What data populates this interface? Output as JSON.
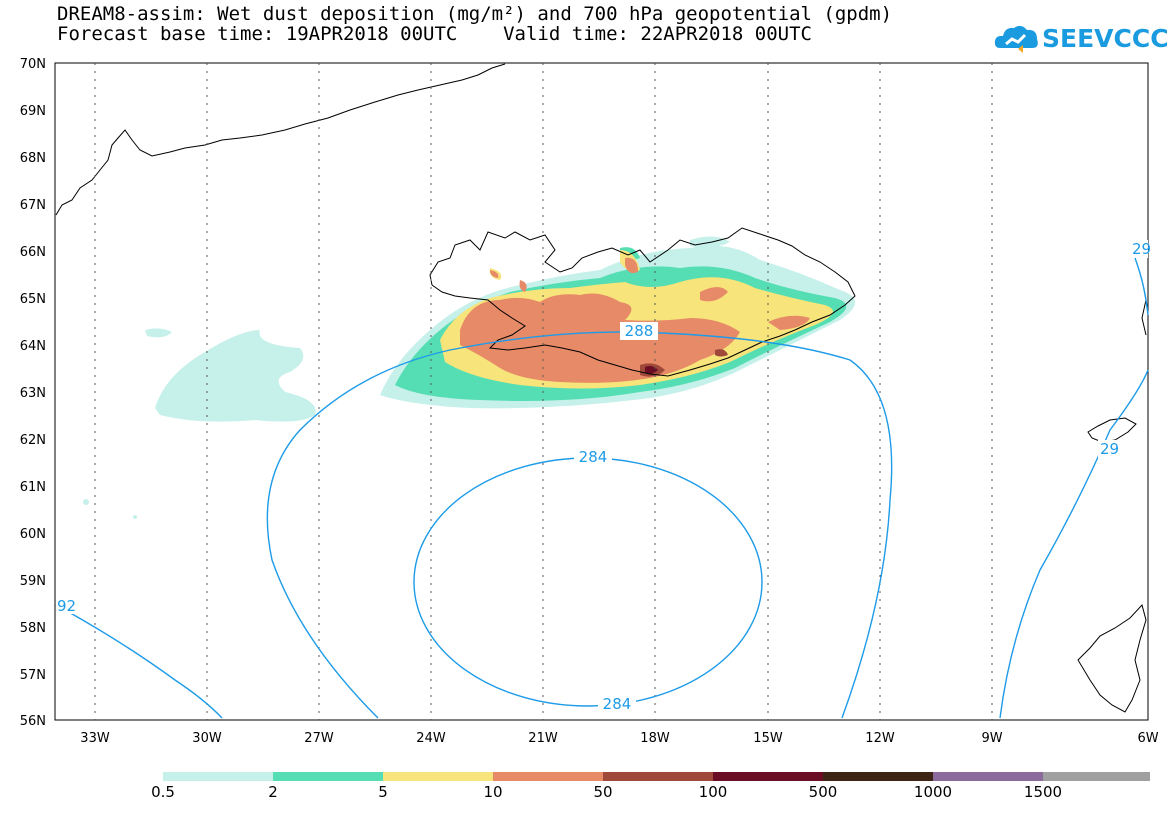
{
  "header": {
    "title_line1": "DREAM8-assim: Wet dust deposition (mg/m²) and 700 hPa geopotential (gpdm)",
    "title_line2": "Forecast base time: 19APR2018 00UTC    Valid time: 22APR2018 00UTC",
    "logo_text": "SEEVCCC"
  },
  "map": {
    "lat_labels": [
      "70N",
      "69N",
      "68N",
      "67N",
      "66N",
      "65N",
      "64N",
      "63N",
      "62N",
      "61N",
      "60N",
      "59N",
      "58N",
      "57N",
      "56N"
    ],
    "lon_labels": [
      "33W",
      "30W",
      "27W",
      "24W",
      "21W",
      "18W",
      "15W",
      "12W",
      "9W",
      "6W"
    ],
    "contour_labels": [
      {
        "text": "288"
      },
      {
        "text": "284"
      },
      {
        "text": "284"
      },
      {
        "text": "92"
      },
      {
        "text": "29"
      },
      {
        "text": "29"
      }
    ],
    "contour_color": "#1e9be8"
  },
  "legend": {
    "colors": [
      "#c6f0ea",
      "#55deb3",
      "#f7e47a",
      "#e68a68",
      "#a0483a",
      "#6b0d25",
      "#3d2414",
      "#8b6a9c",
      "#a0a0a0"
    ],
    "labels": [
      "0.5",
      "2",
      "5",
      "10",
      "50",
      "100",
      "500",
      "1000",
      "1500"
    ]
  }
}
